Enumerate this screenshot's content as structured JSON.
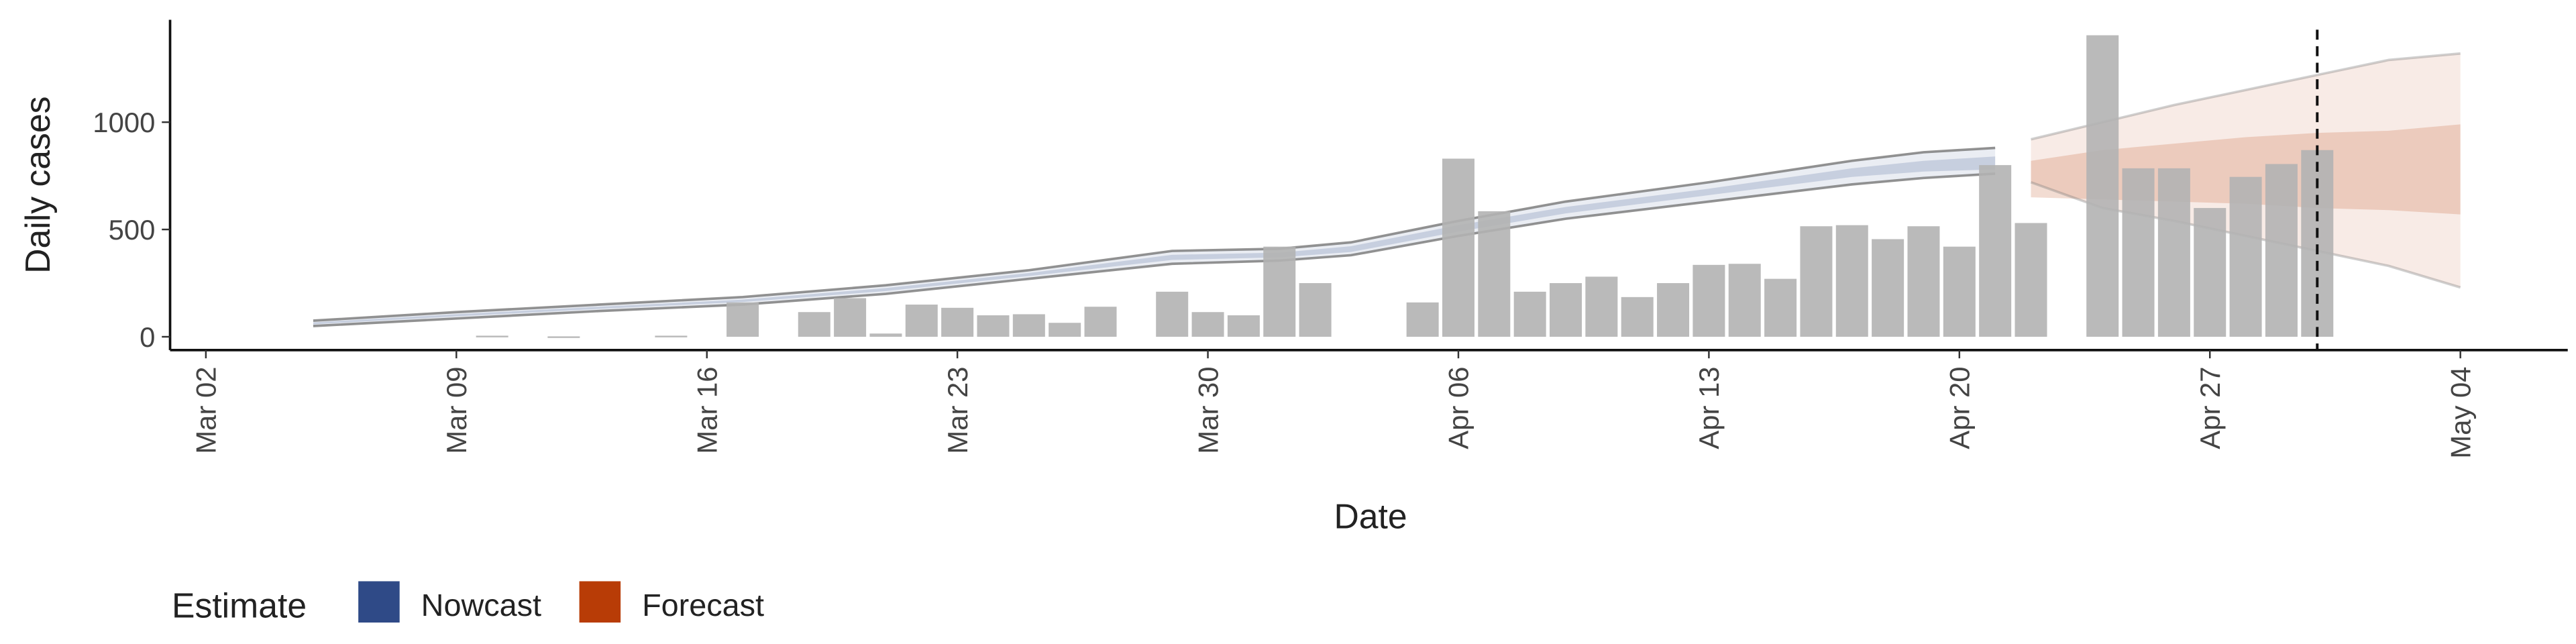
{
  "chart_data": {
    "type": "bar",
    "xlabel": "Date",
    "ylabel": "Daily cases",
    "xlim": [
      "Mar 01",
      "May 07"
    ],
    "xticks": [
      "Mar 02",
      "Mar 09",
      "Mar 16",
      "Mar 23",
      "Mar 30",
      "Apr 06",
      "Apr 13",
      "Apr 20",
      "Apr 27",
      "May 04"
    ],
    "ylim": [
      -62,
      1477
    ],
    "yticks": [
      0,
      500,
      1000
    ],
    "vline": "Apr 30",
    "bars": {
      "color": "#b3b3b3",
      "x": [
        "Mar 10",
        "Mar 12",
        "Mar 15",
        "Mar 17",
        "Mar 19",
        "Mar 20",
        "Mar 21",
        "Mar 22",
        "Mar 23",
        "Mar 24",
        "Mar 25",
        "Mar 26",
        "Mar 27",
        "Mar 29",
        "Mar 30",
        "Mar 31",
        "Apr 01",
        "Apr 02",
        "Apr 05",
        "Apr 06",
        "Apr 07",
        "Apr 08",
        "Apr 09",
        "Apr 10",
        "Apr 11",
        "Apr 12",
        "Apr 13",
        "Apr 14",
        "Apr 15",
        "Apr 16",
        "Apr 17",
        "Apr 18",
        "Apr 19",
        "Apr 20",
        "Apr 21",
        "Apr 22",
        "Apr 24",
        "Apr 25",
        "Apr 26",
        "Apr 27",
        "Apr 28",
        "Apr 29",
        "Apr 30"
      ],
      "values": [
        5,
        2,
        5,
        160,
        115,
        180,
        15,
        150,
        135,
        100,
        105,
        65,
        140,
        210,
        115,
        100,
        420,
        250,
        160,
        830,
        585,
        210,
        250,
        280,
        185,
        250,
        335,
        340,
        270,
        515,
        520,
        455,
        515,
        420,
        800,
        530,
        1405,
        785,
        785,
        600,
        745,
        805,
        870
      ]
    },
    "legend_title": "Estimate",
    "series": [
      {
        "name": "Nowcast",
        "color": "#2f4a87",
        "x": [
          "Mar 05",
          "Mar 09",
          "Mar 13",
          "Mar 17",
          "Mar 21",
          "Mar 25",
          "Mar 29",
          "Apr 01",
          "Apr 03",
          "Apr 06",
          "Apr 09",
          "Apr 13",
          "Apr 17",
          "Apr 19",
          "Apr 21"
        ],
        "lower90": [
          50,
          85,
          120,
          150,
          200,
          270,
          340,
          355,
          380,
          470,
          550,
          630,
          710,
          740,
          760
        ],
        "upper90": [
          75,
          115,
          150,
          185,
          240,
          310,
          400,
          410,
          440,
          540,
          630,
          720,
          820,
          860,
          880
        ],
        "lower50": [
          58,
          95,
          130,
          162,
          213,
          283,
          358,
          370,
          395,
          490,
          575,
          660,
          745,
          770,
          780
        ],
        "upper50": [
          67,
          105,
          140,
          173,
          227,
          297,
          382,
          392,
          422,
          520,
          605,
          690,
          785,
          820,
          840
        ]
      },
      {
        "name": "Forecast",
        "color": "#b83c06",
        "x": [
          "Apr 22",
          "Apr 24",
          "Apr 26",
          "Apr 28",
          "Apr 30",
          "May 02",
          "May 04"
        ],
        "lower90": [
          720,
          600,
          540,
          470,
          400,
          330,
          230
        ],
        "upper90": [
          920,
          1000,
          1080,
          1150,
          1220,
          1290,
          1320
        ],
        "lower50": [
          650,
          640,
          630,
          620,
          600,
          590,
          570
        ],
        "upper50": [
          820,
          870,
          900,
          930,
          950,
          960,
          990
        ]
      }
    ]
  }
}
